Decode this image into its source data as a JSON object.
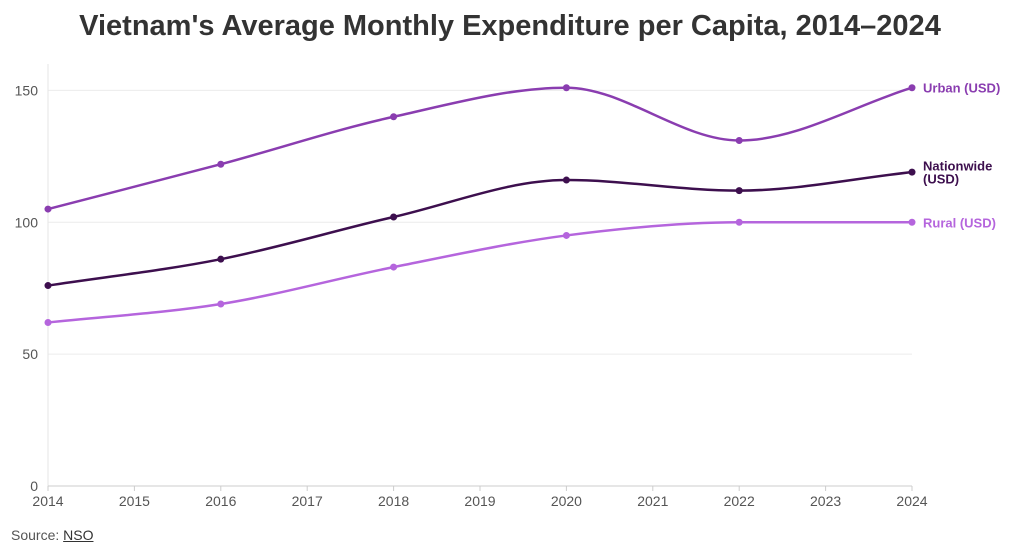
{
  "chart_data": {
    "type": "line",
    "title": "Vietnam's Average Monthly Expenditure per Capita, 2014–2024",
    "x": [
      2014,
      2016,
      2018,
      2020,
      2022,
      2024
    ],
    "x_ticks": [
      "2014",
      "2015",
      "2016",
      "2017",
      "2018",
      "2019",
      "2020",
      "2021",
      "2022",
      "2023",
      "2024"
    ],
    "xlim": [
      2014,
      2024
    ],
    "ylim": [
      0,
      160
    ],
    "y_ticks": [
      0,
      50,
      100,
      150
    ],
    "grid": true,
    "series": [
      {
        "name": "Urban (USD)",
        "values": [
          105,
          122,
          140,
          151,
          131,
          151
        ],
        "color": "#8a3db0"
      },
      {
        "name": "Nationwide (USD)",
        "values": [
          76,
          86,
          102,
          116,
          112,
          119
        ],
        "color": "#3d0f4e",
        "label_lines": [
          "Nationwide",
          "(USD)"
        ]
      },
      {
        "name": "Rural (USD)",
        "values": [
          62,
          69,
          83,
          95,
          100,
          100
        ],
        "color": "#b565dd"
      }
    ]
  },
  "source": {
    "prefix": "Source: ",
    "link_text": "NSO"
  }
}
